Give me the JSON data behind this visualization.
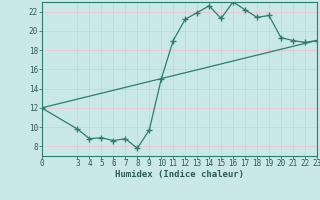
{
  "title": "",
  "xlabel": "Humidex (Indice chaleur)",
  "bg_color": "#cbe8e8",
  "grid_color": "#e8c8c8",
  "line_color": "#2d7d6e",
  "xlim": [
    0,
    23
  ],
  "ylim": [
    7.0,
    23.0
  ],
  "xticks": [
    0,
    3,
    4,
    5,
    6,
    7,
    8,
    9,
    10,
    11,
    12,
    13,
    14,
    15,
    16,
    17,
    18,
    19,
    20,
    21,
    22,
    23
  ],
  "yticks": [
    8,
    10,
    12,
    14,
    16,
    18,
    20,
    22
  ],
  "curve1_x": [
    0,
    3,
    4,
    5,
    6,
    7,
    8,
    9,
    10,
    11,
    12,
    13,
    14,
    15,
    16,
    17,
    18,
    19,
    20,
    21,
    22,
    23
  ],
  "curve1_y": [
    12.0,
    9.8,
    8.8,
    8.9,
    8.6,
    8.8,
    7.8,
    9.7,
    15.0,
    19.0,
    21.2,
    21.9,
    22.6,
    21.3,
    23.0,
    22.2,
    21.4,
    21.6,
    19.3,
    19.0,
    18.8,
    19.0
  ],
  "curve2_x": [
    0,
    23
  ],
  "curve2_y": [
    12.0,
    19.0
  ],
  "tick_fontsize": 5.5,
  "xlabel_fontsize": 6.5,
  "marker_style": "D",
  "marker_size": 2.0,
  "linewidth": 0.9
}
